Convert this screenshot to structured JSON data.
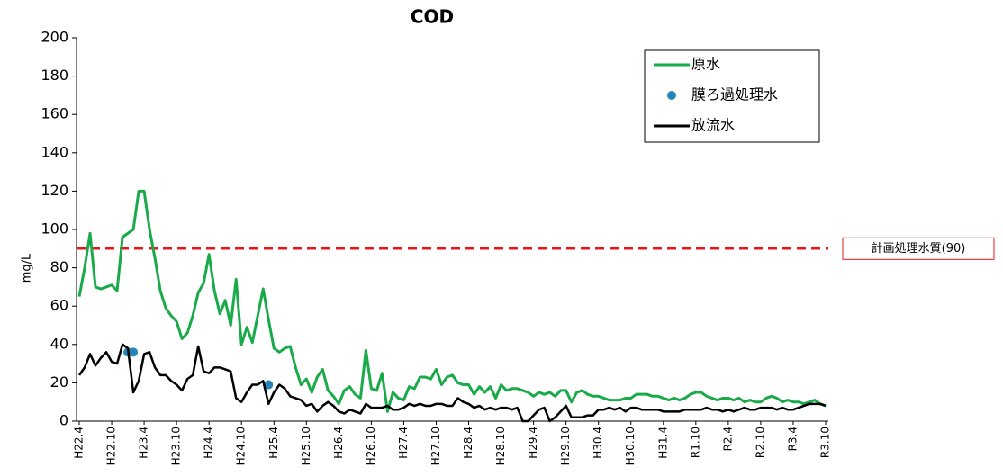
{
  "chart_data": {
    "type": "line",
    "title": "COD",
    "y_label": "mg/L",
    "categories": [
      "H22.4",
      null,
      null,
      null,
      null,
      null,
      "H22.10",
      null,
      null,
      null,
      null,
      null,
      "H23.4",
      null,
      null,
      null,
      null,
      null,
      "H23.10",
      null,
      null,
      null,
      null,
      null,
      "H24.4",
      null,
      null,
      null,
      null,
      null,
      "H24.10",
      null,
      null,
      null,
      null,
      null,
      "H25.4",
      null,
      null,
      null,
      null,
      null,
      "H25.10",
      null,
      null,
      null,
      null,
      null,
      "H26.4",
      null,
      null,
      null,
      null,
      null,
      "H26.10",
      null,
      null,
      null,
      null,
      null,
      "H27.4",
      null,
      null,
      null,
      null,
      null,
      "H27.10",
      null,
      null,
      null,
      null,
      null,
      "H28.4",
      null,
      null,
      null,
      null,
      null,
      "H28.10",
      null,
      null,
      null,
      null,
      null,
      "H29.4",
      null,
      null,
      null,
      null,
      null,
      "H29.10",
      null,
      null,
      null,
      null,
      null,
      "H30.4",
      null,
      null,
      null,
      null,
      null,
      "H30.10",
      null,
      null,
      null,
      null,
      null,
      "H31.4",
      null,
      null,
      null,
      null,
      null,
      "R1.10",
      null,
      null,
      null,
      null,
      null,
      "R2.4",
      null,
      null,
      null,
      null,
      null,
      "R2.10",
      null,
      null,
      null,
      null,
      null,
      "R3.4",
      null,
      null,
      null,
      null,
      null,
      "R3.10"
    ],
    "series": [
      {
        "name": "原水",
        "color": "#1aaa4a",
        "style": "line",
        "values": [
          65,
          80,
          98,
          70,
          69,
          70,
          71,
          68,
          96,
          98,
          100,
          120,
          120,
          100,
          85,
          68,
          59,
          55,
          52,
          43,
          46,
          55,
          67,
          72,
          87,
          68,
          56,
          63,
          50,
          74,
          40,
          49,
          41,
          55,
          69,
          53,
          38,
          36,
          38,
          39,
          28,
          19,
          22,
          15,
          23,
          27,
          16,
          13,
          9,
          16,
          18,
          14,
          12,
          37,
          17,
          16,
          25,
          5,
          15,
          12,
          11,
          18,
          17,
          23,
          23,
          22,
          27,
          19,
          23,
          24,
          20,
          19,
          19,
          14,
          18,
          15,
          18,
          12,
          19,
          16,
          17,
          17,
          16,
          15,
          13,
          15,
          14,
          15,
          13,
          16,
          16,
          10,
          15,
          16,
          14,
          13,
          13,
          12,
          11,
          11,
          11,
          12,
          12,
          14,
          14,
          14,
          13,
          13,
          12,
          11,
          12,
          11,
          12,
          14,
          15,
          15,
          13,
          12,
          11,
          12,
          12,
          11,
          12,
          10,
          11,
          10,
          10,
          12,
          13,
          12,
          10,
          11,
          10,
          10,
          9,
          10,
          11,
          9,
          8
        ]
      },
      {
        "name": "膜ろ過処理水",
        "color": "#2a7fc0",
        "style": "markers",
        "values": [
          null,
          null,
          null,
          null,
          null,
          null,
          null,
          null,
          null,
          36,
          36,
          null,
          null,
          null,
          null,
          null,
          null,
          null,
          null,
          null,
          null,
          null,
          null,
          null,
          null,
          null,
          null,
          null,
          null,
          null,
          null,
          null,
          null,
          null,
          null,
          19,
          null,
          null,
          null,
          null,
          null,
          null,
          null,
          null,
          null,
          null,
          null,
          null,
          null,
          null,
          null,
          null,
          null,
          null,
          null,
          null,
          null,
          null,
          null,
          null,
          null,
          null,
          null,
          null,
          null,
          null,
          null,
          null,
          null,
          null,
          null,
          null,
          null,
          null,
          null,
          null,
          null,
          null,
          null,
          null,
          null,
          null,
          null,
          null,
          null,
          null,
          null,
          null,
          null,
          null,
          null,
          null,
          null,
          null,
          null,
          null,
          null,
          null,
          null,
          null,
          null,
          null,
          null,
          null,
          null,
          null,
          null,
          null,
          null,
          null,
          null,
          null,
          null,
          null,
          null,
          null,
          null,
          null,
          null,
          null,
          null,
          null,
          null,
          null,
          null,
          null,
          null,
          null,
          null,
          null,
          null,
          null,
          null,
          null,
          null,
          null,
          null,
          null,
          null
        ]
      },
      {
        "name": "放流水",
        "color": "#000000",
        "style": "line",
        "values": [
          24,
          28,
          35,
          29,
          33,
          36,
          31,
          30,
          40,
          38,
          15,
          21,
          35,
          36,
          28,
          24,
          24,
          21,
          19,
          16,
          22,
          24,
          39,
          26,
          25,
          28,
          28,
          27,
          26,
          12,
          10,
          15,
          19,
          19,
          21,
          9,
          15,
          19,
          17,
          13,
          12,
          11,
          8,
          9,
          5,
          8,
          10,
          8,
          5,
          4,
          6,
          5,
          4,
          9,
          7,
          7,
          7,
          8,
          6,
          6,
          7,
          9,
          8,
          9,
          8,
          8,
          9,
          9,
          8,
          8,
          12,
          10,
          9,
          7,
          8,
          6,
          7,
          6,
          7,
          7,
          6,
          7,
          0,
          0,
          3,
          6,
          7,
          0,
          2,
          5,
          8,
          2,
          2,
          2,
          3,
          3,
          6,
          6,
          7,
          6,
          7,
          5,
          7,
          7,
          6,
          6,
          6,
          6,
          5,
          5,
          5,
          5,
          6,
          6,
          6,
          6,
          7,
          6,
          6,
          5,
          6,
          5,
          6,
          7,
          6,
          6,
          7,
          7,
          7,
          6,
          7,
          6,
          6,
          7,
          8,
          9,
          9,
          9,
          8
        ]
      }
    ],
    "reference_line": {
      "value": 90,
      "label": "計画処理水質(90)",
      "color": "#e8141c"
    },
    "ylim": [
      0,
      200
    ],
    "yticks": [
      0,
      20,
      40,
      60,
      80,
      100,
      120,
      140,
      160,
      180,
      200
    ],
    "grid": false,
    "legend": "upper right"
  }
}
